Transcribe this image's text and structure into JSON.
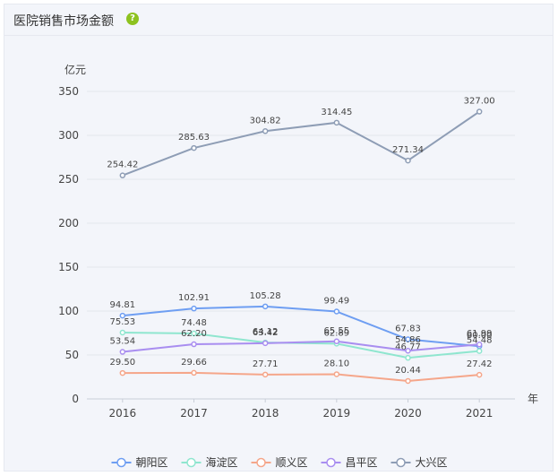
{
  "panel": {
    "title": "医院销售市场金额",
    "help_icon": "?"
  },
  "chart_data": {
    "type": "line",
    "title": "医院销售市场金额",
    "ylabel": "亿元",
    "xlabel": "年",
    "ylim": [
      0,
      350
    ],
    "yticks": [
      0,
      50,
      100,
      150,
      200,
      250,
      300,
      350
    ],
    "categories": [
      "2016",
      "2017",
      "2018",
      "2019",
      "2020",
      "2021"
    ],
    "grid": true,
    "legend_position": "bottom",
    "series": [
      {
        "name": "朝阳区",
        "color": "#6e9ef2",
        "values": [
          94.81,
          102.91,
          105.28,
          99.49,
          67.83,
          60.0
        ],
        "labels": [
          "94.81",
          "102.91",
          "105.28",
          "99.49",
          "67.83",
          "60.00"
        ]
      },
      {
        "name": "海淀区",
        "color": "#8fe6cf",
        "values": [
          75.53,
          74.48,
          64.12,
          62.89,
          46.77,
          54.48
        ],
        "labels": [
          "75.53",
          "74.48",
          "64.12",
          "62.89",
          "46.77",
          "54.48"
        ]
      },
      {
        "name": "顺义区",
        "color": "#f5a68a",
        "values": [
          29.5,
          29.66,
          27.71,
          28.1,
          20.44,
          27.42
        ],
        "labels": [
          "29.50",
          "29.66",
          "27.71",
          "28.10",
          "20.44",
          "27.42"
        ]
      },
      {
        "name": "昌平区",
        "color": "#a98ef0",
        "values": [
          53.54,
          62.2,
          63.42,
          65.55,
          54.86,
          61.99
        ],
        "labels": [
          "53.54",
          "62.20",
          "63.42",
          "65.55",
          "54.86",
          "61.99"
        ]
      },
      {
        "name": "大兴区",
        "color": "#8e9db5",
        "values": [
          254.42,
          285.63,
          304.82,
          314.45,
          271.34,
          327.0
        ],
        "labels": [
          "254.42",
          "285.63",
          "304.82",
          "314.45",
          "271.34",
          "327.00"
        ]
      }
    ]
  }
}
